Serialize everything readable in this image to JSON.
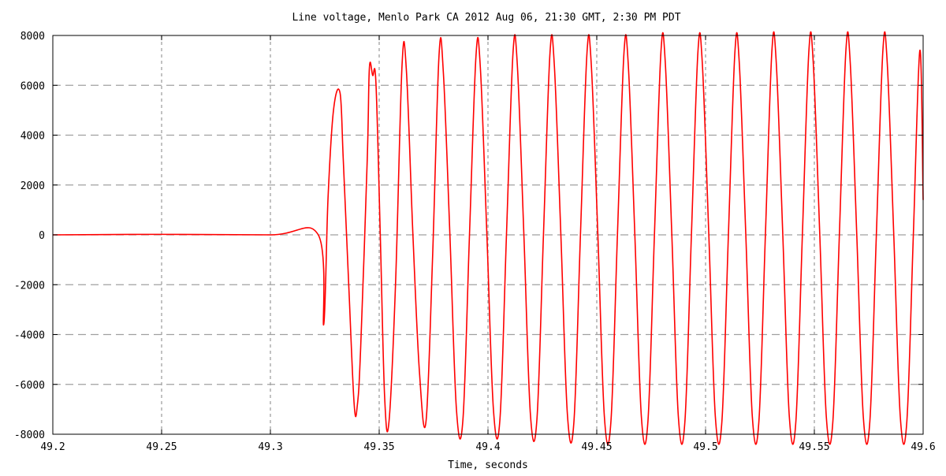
{
  "chart_data": {
    "type": "line",
    "title": "Line voltage, Menlo Park CA    2012 Aug 06, 21:30 GMT, 2:30 PM PDT",
    "xlabel": "Time, seconds",
    "ylabel": "",
    "xlim": [
      49.2,
      49.6
    ],
    "ylim": [
      -8000,
      8000
    ],
    "x_ticks": [
      49.2,
      49.25,
      49.3,
      49.35,
      49.4,
      49.45,
      49.5,
      49.55,
      49.6
    ],
    "x_tick_labels": [
      "49.2",
      "49.25",
      "49.3",
      "49.35",
      "49.4",
      "49.45",
      "49.5",
      "49.55",
      "49.6"
    ],
    "y_ticks": [
      -8000,
      -6000,
      -4000,
      -2000,
      0,
      2000,
      4000,
      6000,
      8000
    ],
    "y_tick_labels": [
      "-8000",
      "-6000",
      "-4000",
      "-2000",
      "0",
      "2000",
      "4000",
      "6000",
      "8000"
    ],
    "grid": true,
    "grid_style": "dashed",
    "series": [
      {
        "color": "#ff0000",
        "points": [
          [
            49.2,
            0
          ],
          [
            49.25,
            20
          ],
          [
            49.3,
            0
          ],
          [
            49.322,
            0
          ],
          [
            49.3245,
            -3600
          ],
          [
            49.3265,
            1500
          ],
          [
            49.329,
            5000
          ],
          [
            49.332,
            5700
          ],
          [
            49.3335,
            3000
          ],
          [
            49.336,
            -2000
          ],
          [
            49.3385,
            -6800
          ],
          [
            49.34,
            -6800
          ],
          [
            49.3415,
            -4500
          ],
          [
            49.3445,
            3000
          ],
          [
            49.3455,
            6700
          ],
          [
            49.347,
            6400
          ],
          [
            49.3485,
            6100
          ],
          [
            49.3505,
            0
          ],
          [
            49.3525,
            -6500
          ],
          [
            49.3545,
            -7500
          ],
          [
            49.3575,
            -2000
          ],
          [
            49.3605,
            6800
          ],
          [
            49.3625,
            6600
          ],
          [
            49.3655,
            0
          ],
          [
            49.3685,
            -5500
          ],
          [
            49.3715,
            -7500
          ],
          [
            49.3745,
            -1000
          ],
          [
            49.3775,
            7200
          ],
          [
            49.3795,
            6500
          ],
          [
            49.3825,
            0
          ],
          [
            49.3855,
            -7000
          ],
          [
            49.3885,
            -7400
          ],
          [
            49.3915,
            0
          ],
          [
            49.3945,
            7200
          ],
          [
            49.3965,
            6700
          ],
          [
            49.3995,
            0
          ],
          [
            49.4025,
            -7000
          ],
          [
            49.4055,
            -7400
          ],
          [
            49.4085,
            0
          ],
          [
            49.4115,
            7300
          ],
          [
            49.4135,
            6800
          ],
          [
            49.4165,
            0
          ],
          [
            49.4195,
            -7200
          ],
          [
            49.4225,
            -7400
          ],
          [
            49.4255,
            0
          ],
          [
            49.4285,
            7300
          ],
          [
            49.4305,
            6800
          ],
          [
            49.4335,
            0
          ],
          [
            49.4365,
            -7200
          ],
          [
            49.4395,
            -7500
          ],
          [
            49.4425,
            0
          ],
          [
            49.4455,
            7300
          ],
          [
            49.4475,
            6800
          ],
          [
            49.4505,
            0
          ],
          [
            49.4535,
            -7300
          ],
          [
            49.4565,
            -7500
          ],
          [
            49.4595,
            0
          ],
          [
            49.4625,
            7300
          ],
          [
            49.4645,
            6800
          ],
          [
            49.4675,
            0
          ],
          [
            49.4705,
            -7300
          ],
          [
            49.4735,
            -7500
          ],
          [
            49.4765,
            0
          ],
          [
            49.4795,
            7350
          ],
          [
            49.4815,
            6900
          ],
          [
            49.4845,
            0
          ],
          [
            49.4875,
            -7300
          ],
          [
            49.4905,
            -7500
          ],
          [
            49.4935,
            0
          ],
          [
            49.4965,
            7350
          ],
          [
            49.4985,
            6900
          ],
          [
            49.5015,
            0
          ],
          [
            49.5045,
            -7300
          ],
          [
            49.5075,
            -7500
          ],
          [
            49.5105,
            0
          ],
          [
            49.5135,
            7350
          ],
          [
            49.5155,
            6900
          ],
          [
            49.5185,
            0
          ],
          [
            49.5215,
            -7300
          ],
          [
            49.5245,
            -7500
          ],
          [
            49.5275,
            0
          ],
          [
            49.5305,
            7400
          ],
          [
            49.5325,
            6900
          ],
          [
            49.5355,
            0
          ],
          [
            49.5385,
            -7300
          ],
          [
            49.5415,
            -7500
          ],
          [
            49.5445,
            0
          ],
          [
            49.5475,
            7400
          ],
          [
            49.5495,
            6900
          ],
          [
            49.5525,
            0
          ],
          [
            49.5555,
            -7300
          ],
          [
            49.5585,
            -7500
          ],
          [
            49.5615,
            0
          ],
          [
            49.5645,
            7400
          ],
          [
            49.5665,
            6900
          ],
          [
            49.5695,
            0
          ],
          [
            49.5725,
            -7300
          ],
          [
            49.5755,
            -7500
          ],
          [
            49.5785,
            0
          ],
          [
            49.5815,
            7400
          ],
          [
            49.5835,
            6900
          ],
          [
            49.5865,
            0
          ],
          [
            49.5895,
            -7300
          ],
          [
            49.5925,
            -7500
          ],
          [
            49.5955,
            0
          ],
          [
            49.5985,
            7400
          ],
          [
            49.6,
            1400
          ]
        ]
      }
    ]
  }
}
